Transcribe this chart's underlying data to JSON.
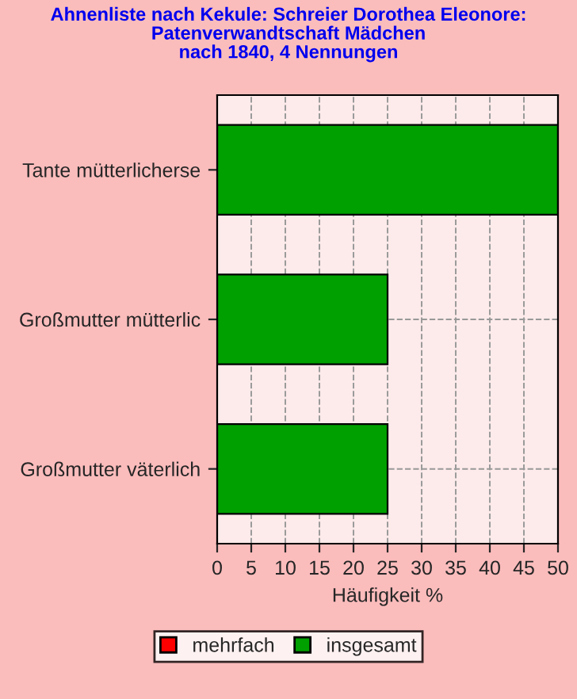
{
  "chart_data": {
    "type": "bar",
    "orientation": "horizontal",
    "title": "Ahnenliste nach Kekule: Schreier Dorothea Eleonore:\nPatenverwandtschaft Mädchen\nnach 1840, 4 Nennungen",
    "xlabel": "Häufigkeit %",
    "categories": [
      "Tante mütterlicherse",
      "Großmutter mütterlic",
      "Großmutter väterlich"
    ],
    "series": [
      {
        "name": "mehrfach",
        "color": "#ff0000",
        "values": [
          0,
          0,
          0
        ]
      },
      {
        "name": "insgesamt",
        "color": "#00a000",
        "values": [
          50,
          25,
          25
        ]
      }
    ],
    "xlim": [
      0,
      50
    ],
    "xticks": [
      0,
      5,
      10,
      15,
      20,
      25,
      30,
      35,
      40,
      45,
      50
    ],
    "grid": true,
    "legend": "bottom"
  }
}
